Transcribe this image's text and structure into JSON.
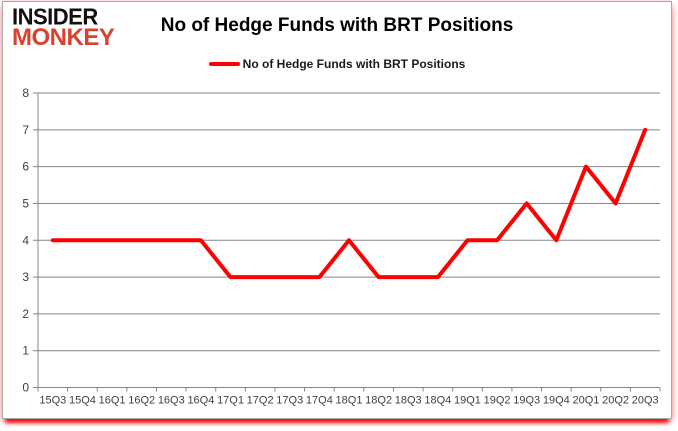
{
  "logo": {
    "line1": "INSIDER",
    "line2": "MONKEY",
    "line1_color": "#101010",
    "line2_color": "#d8432f"
  },
  "header": {
    "title": "No of Hedge Funds with BRT Positions"
  },
  "legend": {
    "label": "No of Hedge Funds with BRT Positions",
    "marker_color": "#ff0000"
  },
  "chart_data": {
    "type": "line",
    "title": "No of Hedge Funds with BRT Positions",
    "categories": [
      "15Q3",
      "15Q4",
      "16Q1",
      "16Q2",
      "16Q3",
      "16Q4",
      "17Q1",
      "17Q2",
      "17Q3",
      "17Q4",
      "18Q1",
      "18Q2",
      "18Q3",
      "18Q4",
      "19Q1",
      "19Q2",
      "19Q3",
      "19Q4",
      "20Q1",
      "20Q2",
      "20Q3"
    ],
    "series": [
      {
        "name": "No of Hedge Funds with BRT Positions",
        "values": [
          4,
          4,
          4,
          4,
          4,
          4,
          3,
          3,
          3,
          3,
          4,
          3,
          3,
          3,
          4,
          4,
          5,
          4,
          6,
          5,
          7
        ],
        "color": "#ff0000"
      }
    ],
    "xlabel": "",
    "ylabel": "",
    "ylim": [
      0,
      8
    ],
    "ytick_interval": 1,
    "yticks": [
      0,
      1,
      2,
      3,
      4,
      5,
      6,
      7,
      8
    ],
    "grid": "horizontal",
    "legend_position": "top-center",
    "gridline_color": "#848484",
    "axis_color": "#848484",
    "tick_label_color": "#3f3f3f",
    "line_width": 4
  }
}
